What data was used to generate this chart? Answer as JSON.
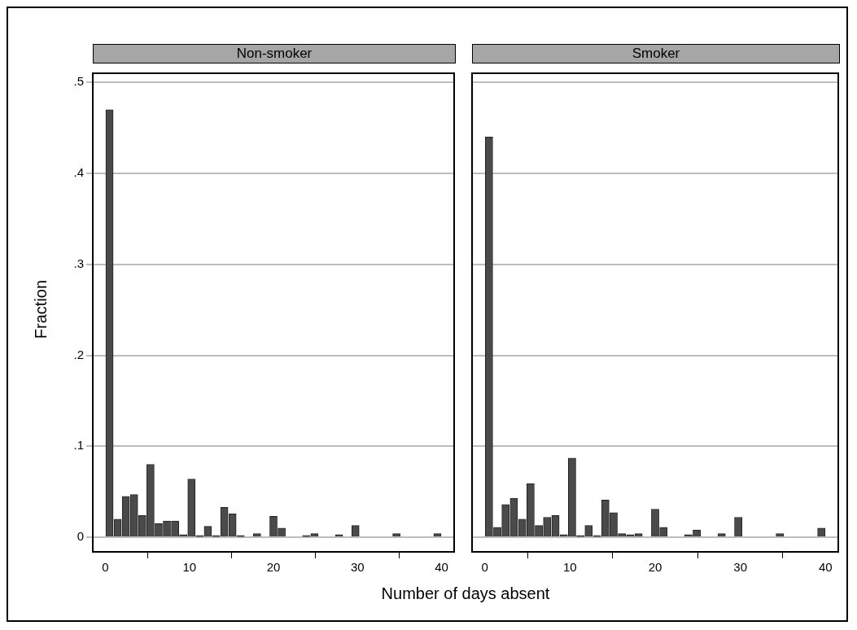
{
  "chart_data": [
    {
      "type": "histogram",
      "title": "Non-smoker",
      "xlabel": "Number of days absent",
      "ylabel": "Fraction",
      "color": "#4a4a4a",
      "bins": [
        0,
        0.976,
        1.951,
        2.927,
        3.902,
        4.878,
        5.854,
        6.829,
        7.805,
        8.78,
        9.756,
        10.732,
        11.707,
        12.683,
        13.659,
        14.634,
        15.61,
        16.585,
        17.561,
        18.537,
        19.512,
        20.488,
        21.463,
        23.415,
        24.39,
        25.366,
        27.317,
        28.293,
        29.268,
        30.244,
        34.146,
        35.122,
        39.024,
        40
      ],
      "values": [
        0.47,
        0.02,
        0.045,
        0.047,
        0.024,
        0.08,
        0.015,
        0.018,
        0.018,
        0.003,
        0.064,
        0.002,
        0.012,
        0.002,
        0.033,
        0.026,
        0.002,
        0,
        0.004,
        0,
        0.023,
        0.01,
        0,
        0.002,
        0.004,
        0,
        0.003,
        0,
        0.013,
        0,
        0.004,
        0,
        0.004
      ],
      "xlim": [
        -1.5,
        41.5
      ],
      "xticks": [
        0,
        10,
        20,
        30,
        40
      ],
      "ylim": [
        -0.016,
        0.51
      ],
      "yticks": [
        0,
        {
          "value": 0.1,
          "label": ".1"
        },
        {
          "value": 0.2,
          "label": ".2"
        },
        {
          "value": 0.3,
          "label": ".3"
        },
        {
          "value": 0.4,
          "label": ".4"
        },
        {
          "value": 0.5,
          "label": ".5"
        }
      ],
      "grid": "y"
    },
    {
      "type": "histogram",
      "title": "Smoker",
      "color": "#4a4a4a",
      "bins": [
        0,
        0.976,
        1.951,
        2.927,
        3.902,
        4.878,
        5.854,
        6.829,
        7.805,
        8.78,
        9.756,
        10.732,
        11.707,
        12.683,
        13.659,
        14.634,
        15.61,
        16.585,
        17.561,
        18.537,
        19.512,
        20.488,
        21.463,
        23.415,
        24.39,
        25.366,
        27.317,
        28.293,
        29.268,
        30.244,
        34.146,
        35.122,
        39.024,
        40
      ],
      "values": [
        0.44,
        0.011,
        0.036,
        0.043,
        0.02,
        0.059,
        0.013,
        0.022,
        0.024,
        0.003,
        0.087,
        0.002,
        0.013,
        0.002,
        0.041,
        0.027,
        0.004,
        0.003,
        0.004,
        0,
        0.031,
        0.011,
        0,
        0.003,
        0.008,
        0,
        0.004,
        0,
        0.022,
        0,
        0.004,
        0,
        0.01
      ],
      "xlim": [
        -1.5,
        41.5
      ],
      "xticks": [
        0,
        10,
        20,
        30,
        40
      ],
      "ylim": [
        -0.016,
        0.51
      ],
      "yticks": [
        0,
        0.1,
        0.2,
        0.3,
        0.4,
        0.5
      ],
      "grid": "y",
      "tick_labels": "x"
    }
  ]
}
